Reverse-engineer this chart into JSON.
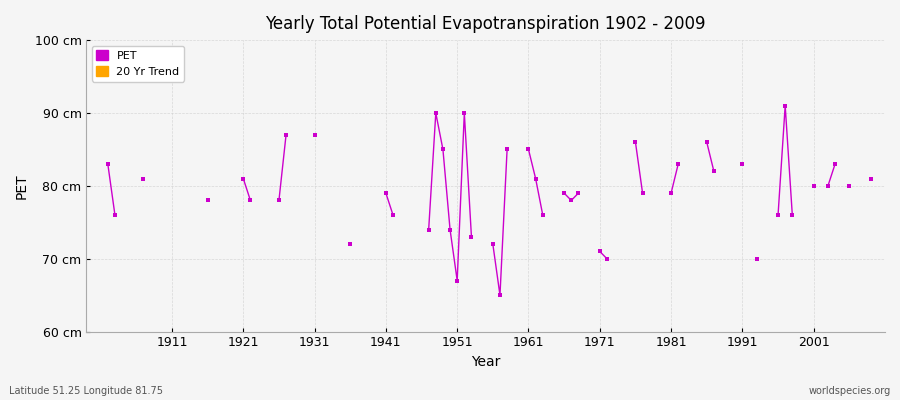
{
  "title": "Yearly Total Potential Evapotranspiration 1902 - 2009",
  "xlabel": "Year",
  "ylabel": "PET",
  "subtitle_left": "Latitude 51.25 Longitude 81.75",
  "subtitle_right": "worldspecies.org",
  "ylim": [
    60,
    100
  ],
  "yticks": [
    60,
    70,
    80,
    90,
    100
  ],
  "ytick_labels": [
    "60 cm",
    "70 cm",
    "80 cm",
    "90 cm",
    "100 cm"
  ],
  "xtick_labels": [
    "1911",
    "1921",
    "1931",
    "1941",
    "1951",
    "1961",
    "1971",
    "1981",
    "1991",
    "2001"
  ],
  "xtick_positions": [
    1911,
    1921,
    1931,
    1941,
    1951,
    1961,
    1971,
    1981,
    1991,
    2001
  ],
  "pet_color": "#cc00cc",
  "trend_color": "#FFA500",
  "bg_color": "#f5f5f5",
  "plot_bg_color": "#f5f5f5",
  "grid_color": "#cccccc",
  "legend_bg": "#ffffff",
  "years": [
    1902,
    1903,
    1907,
    1916,
    1921,
    1922,
    1926,
    1927,
    1931,
    1936,
    1941,
    1942,
    1947,
    1948,
    1949,
    1950,
    1951,
    1952,
    1953,
    1956,
    1957,
    1958,
    1961,
    1962,
    1963,
    1966,
    1967,
    1968,
    1971,
    1972,
    1976,
    1977,
    1981,
    1982,
    1986,
    1987,
    1991,
    1993,
    1996,
    1997,
    1998,
    2001,
    2003,
    2004,
    2006,
    2009
  ],
  "pet_values": [
    83,
    76,
    81,
    78,
    81,
    78,
    78,
    87,
    87,
    72,
    79,
    76,
    74,
    90,
    85,
    74,
    67,
    90,
    73,
    72,
    65,
    85,
    85,
    81,
    76,
    79,
    78,
    79,
    71,
    70,
    86,
    79,
    79,
    83,
    86,
    82,
    83,
    70,
    76,
    91,
    76,
    80,
    80,
    83,
    80,
    81
  ]
}
